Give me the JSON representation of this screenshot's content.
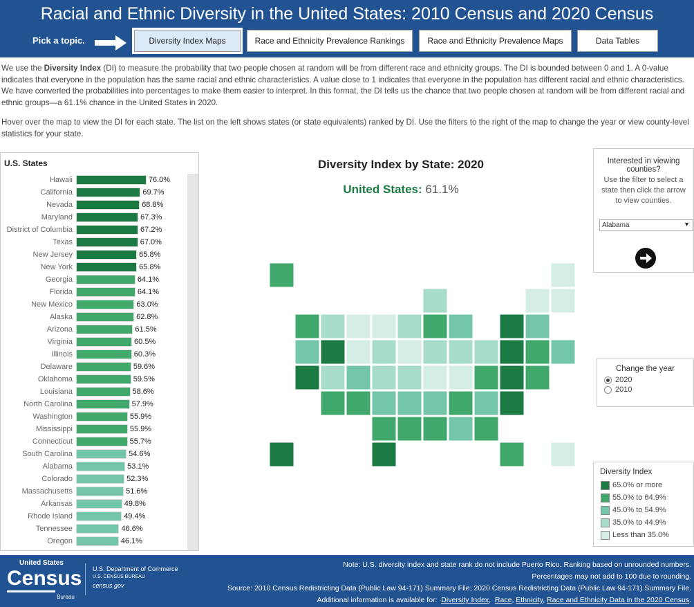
{
  "header": {
    "title": "Racial and Ethnic Diversity in the United States: 2010 Census and 2020 Census",
    "pick": "Pick a topic.",
    "tabs": [
      {
        "label": "Diversity Index Maps",
        "active": true
      },
      {
        "label": "Race and Ethnicity Prevalence Rankings"
      },
      {
        "label": "Race and Ethnicity Prevalence Maps"
      },
      {
        "label": "Data Tables"
      }
    ]
  },
  "intro": {
    "p1_pre": "We use the ",
    "p1_bold": "Diversity Index",
    "p1_post": " (DI) to measure the probability that two people chosen at random will be from different race and ethnicity groups. The DI is bounded between 0 and 1. A 0-value indicates that everyone in the population has the same racial and ethnic characteristics. A value close to 1 indicates that everyone in the population has different racial and ethnic characteristics. We have converted the probabilities into percentages to make them easier to interpret. In this format, the DI tells us the chance that two people chosen at random will be from different racial and ethnic groups—a 61.1% chance in the United States in 2020.",
    "p2": "Hover over the map to view the DI for each state. The list on the left shows states (or state equivalents) ranked by DI. Use the filters to the right of the map to change the year or view county-level statistics for your state."
  },
  "colors": {
    "header": "#215393",
    "legend": [
      "#1a7a42",
      "#3fa86a",
      "#74c6a8",
      "#a6dcc8",
      "#d4eee6"
    ]
  },
  "list": {
    "title": "U.S. States",
    "rows": [
      [
        "Hawaii",
        76.0
      ],
      [
        "California",
        69.7
      ],
      [
        "Nevada",
        68.8
      ],
      [
        "Maryland",
        67.3
      ],
      [
        "District of Columbia",
        67.2
      ],
      [
        "Texas",
        67.0
      ],
      [
        "New Jersey",
        65.8
      ],
      [
        "New York",
        65.8
      ],
      [
        "Georgia",
        64.1
      ],
      [
        "Florida",
        64.1
      ],
      [
        "New Mexico",
        63.0
      ],
      [
        "Alaska",
        62.8
      ],
      [
        "Arizona",
        61.5
      ],
      [
        "Virginia",
        60.5
      ],
      [
        "Illinois",
        60.3
      ],
      [
        "Delaware",
        59.6
      ],
      [
        "Oklahoma",
        59.5
      ],
      [
        "Louisiana",
        58.6
      ],
      [
        "North Carolina",
        57.9
      ],
      [
        "Washington",
        55.9
      ],
      [
        "Mississippi",
        55.9
      ],
      [
        "Connecticut",
        55.7
      ],
      [
        "South Carolina",
        54.6
      ],
      [
        "Alabama",
        53.1
      ],
      [
        "Colorado",
        52.3
      ],
      [
        "Massachusetts",
        51.6
      ],
      [
        "Arkansas",
        49.8
      ],
      [
        "Rhode Island",
        49.4
      ],
      [
        "Tennessee",
        46.6
      ],
      [
        "Oregon",
        46.1
      ]
    ]
  },
  "map": {
    "title": "Diversity Index by State: 2020",
    "us_label": "United States:",
    "us_value": "61.1%",
    "states": {
      "AK": 1,
      "ME": 4,
      "WI": 3,
      "VT": 4,
      "NH": 4,
      "WA": 1,
      "ID": 3,
      "MT": 4,
      "ND": 4,
      "MN": 3,
      "IL": 1,
      "MI": 2,
      "NY": 0,
      "MA": 2,
      "OR": 2,
      "NV": 0,
      "WY": 4,
      "SD": 3,
      "IA": 4,
      "IN": 3,
      "OH": 3,
      "PA": 3,
      "NJ": 0,
      "CT": 1,
      "RI": 2,
      "CA": 0,
      "UT": 3,
      "CO": 2,
      "NE": 3,
      "MO": 3,
      "KY": 4,
      "WV": 4,
      "VA": 1,
      "MD": 0,
      "DE": 1,
      "AZ": 1,
      "NM": 1,
      "KS": 2,
      "AR": 2,
      "TN": 2,
      "NC": 1,
      "SC": 2,
      "DC": 0,
      "OK": 1,
      "LA": 1,
      "MS": 1,
      "AL": 2,
      "GA": 1,
      "HI": 0,
      "TX": 0,
      "FL": 1,
      "PR": 4
    }
  },
  "counties": {
    "heading": "Interested in viewing counties?",
    "text": "Use the filter to select a state then click the arrow to view counties.",
    "selected": "Alabama"
  },
  "year": {
    "heading": "Change the year",
    "options": [
      "2020",
      "2010"
    ],
    "selected": "2020"
  },
  "legend": {
    "title": "Diversity Index",
    "items": [
      "65.0% or more",
      "55.0% to 64.9%",
      "45.0% to 54.9%",
      "35.0% to 44.9%",
      "Less than 35.0%"
    ]
  },
  "footer": {
    "logo_top": "United States",
    "logo_main": "Census",
    "logo_sub": "Bureau",
    "dept": "U.S. Department of Commerce",
    "bureau": "U.S. CENSUS BUREAU",
    "site": "census.gov",
    "note1": "Note: U.S. diversity index and state rank do not include Puerto Rico. Ranking based on unrounded numbers.",
    "note2": "Percentages may not add to 100 due to rounding.",
    "source": "Source: 2010 Census Redistricting Data (Public Law 94-171) Summary File; 2020 Census Redistricting Data (Public Law 94-171) Summary File.",
    "more": "Additional information is available for:",
    "links": [
      "Diversity Index",
      "Race",
      "Ethnicity",
      "Race and Ethnicity Data in the 2020 Census"
    ]
  }
}
